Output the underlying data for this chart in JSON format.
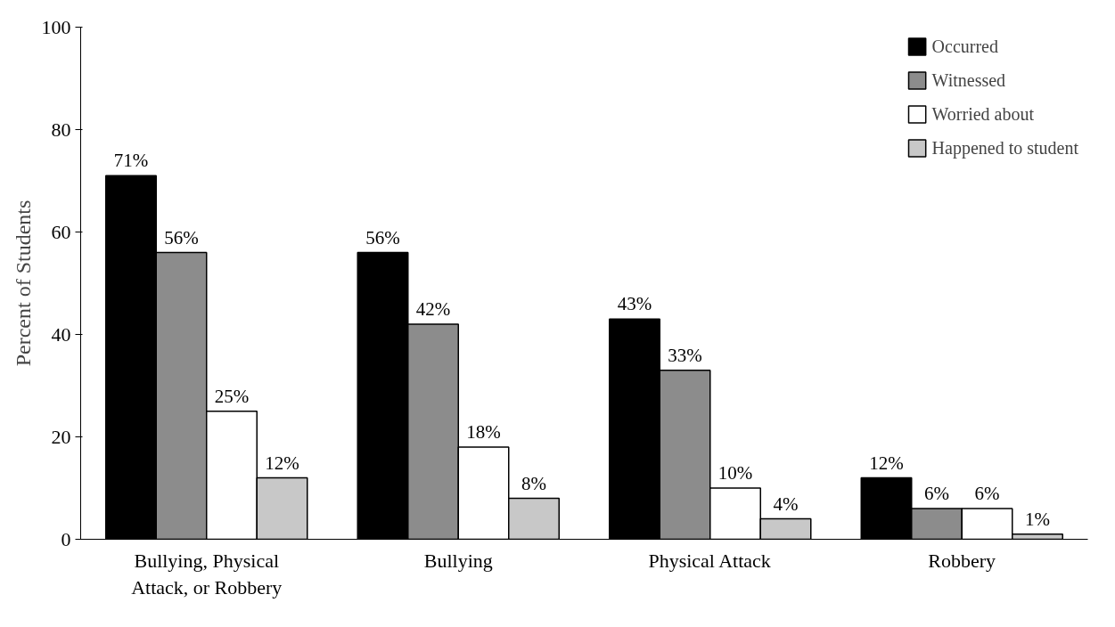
{
  "chart_data": {
    "type": "bar",
    "ylabel": "Percent of Students",
    "categories": [
      "Bullying, Physical\nAttack, or Robbery",
      "Bullying",
      "Physical Attack",
      "Robbery"
    ],
    "series": [
      {
        "name": "Occurred",
        "color": "#000000",
        "values": [
          71,
          56,
          43,
          12
        ],
        "value_labels": [
          "71%",
          "56%",
          "43%",
          "12%"
        ]
      },
      {
        "name": "Witnessed",
        "color": "#8c8c8c",
        "values": [
          56,
          42,
          33,
          6
        ],
        "value_labels": [
          "56%",
          "42%",
          "33%",
          "6%"
        ]
      },
      {
        "name": "Worried about",
        "color": "#ffffff",
        "values": [
          25,
          18,
          10,
          6
        ],
        "value_labels": [
          "25%",
          "18%",
          "10%",
          "6%"
        ]
      },
      {
        "name": "Happened to student",
        "color": "#c8c8c8",
        "values": [
          12,
          8,
          4,
          1
        ],
        "value_labels": [
          "12%",
          "8%",
          "4%",
          "1%"
        ]
      }
    ],
    "ylim": [
      0,
      100
    ],
    "yticks": [
      0,
      20,
      40,
      60,
      80,
      100
    ],
    "grid": false,
    "legend": "top right"
  }
}
